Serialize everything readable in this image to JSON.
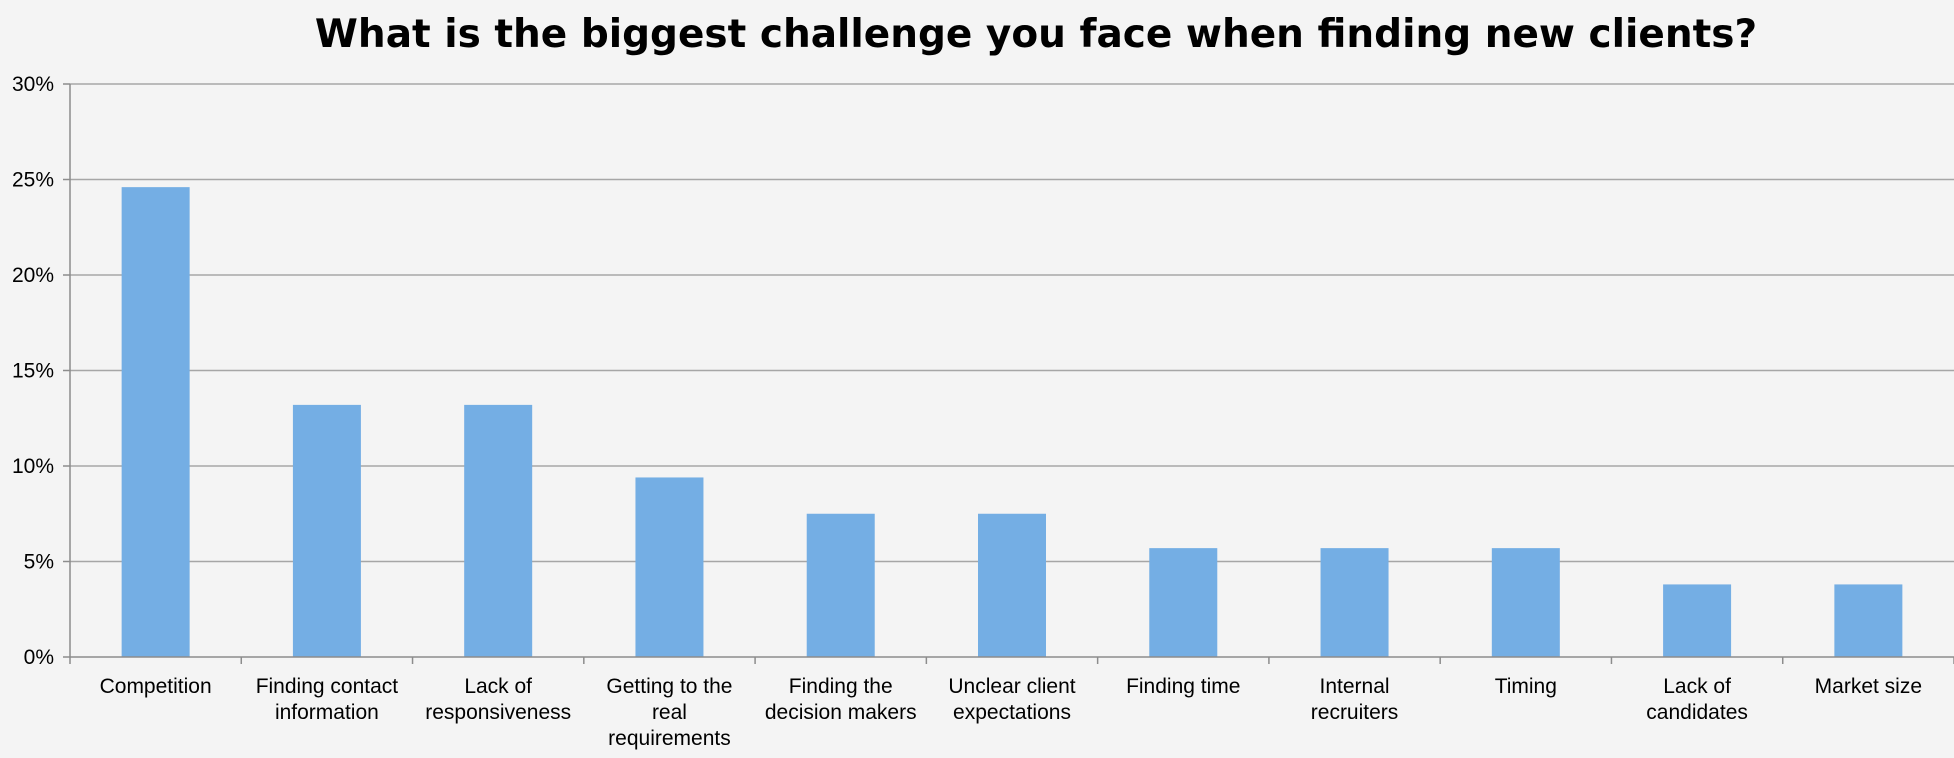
{
  "colors": {
    "background": "#f4f4f4",
    "bar": "#74aee4",
    "gridline": "#a6a6a6",
    "axis": "#8c8c8c",
    "text": "#000000"
  },
  "chart_data": {
    "type": "bar",
    "title": "What is the biggest challenge you face when finding new clients?",
    "xlabel": "",
    "ylabel": "",
    "categories": [
      "Competition",
      "Finding contact information",
      "Lack of responsiveness",
      "Getting to the real requirements",
      "Finding the decision makers",
      "Unclear client expectations",
      "Finding time",
      "Internal recruiters",
      "Timing",
      "Lack of candidates",
      "Market size"
    ],
    "category_label_lines": [
      [
        "Competition"
      ],
      [
        "Finding contact",
        "information"
      ],
      [
        "Lack of",
        "responsiveness"
      ],
      [
        "Getting to the",
        "real",
        "requirements"
      ],
      [
        "Finding the",
        "decision makers"
      ],
      [
        "Unclear client",
        "expectations"
      ],
      [
        "Finding time"
      ],
      [
        "Internal",
        "recruiters"
      ],
      [
        "Timing"
      ],
      [
        "Lack of",
        "candidates"
      ],
      [
        "Market size"
      ]
    ],
    "values": [
      24.6,
      13.2,
      13.2,
      9.4,
      7.5,
      7.5,
      5.7,
      5.7,
      5.7,
      3.8,
      3.8
    ],
    "ylim": [
      0,
      30
    ],
    "yticks": [
      0,
      5,
      10,
      15,
      20,
      25,
      30
    ],
    "ytick_labels": [
      "0%",
      "5%",
      "10%",
      "15%",
      "20%",
      "25%",
      "30%"
    ],
    "grid": true,
    "legend": "none"
  }
}
